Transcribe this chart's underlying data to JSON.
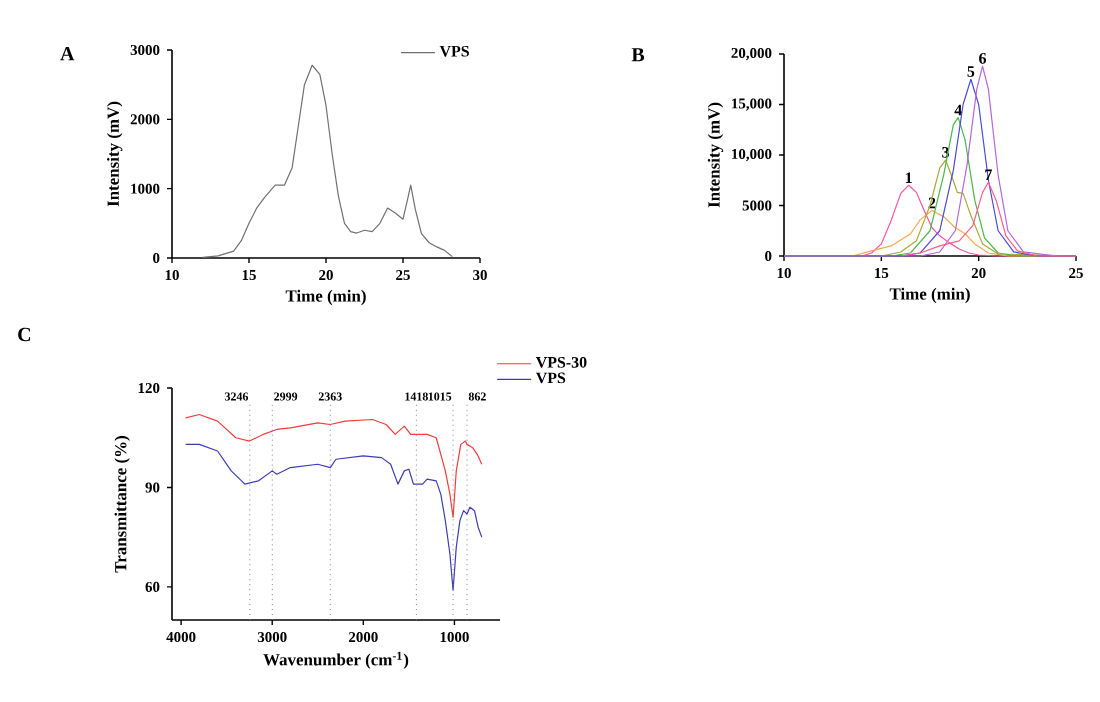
{
  "chart_data": [
    {
      "type": "line",
      "title": "A",
      "xlabel": "Time (min)",
      "ylabel": "Intensity (mV)",
      "xlim": [
        10,
        30
      ],
      "xticks": [
        10,
        15,
        20,
        25,
        30
      ],
      "ylim": [
        0,
        3000
      ],
      "yticks": [
        0,
        1000,
        2000,
        3000
      ],
      "legend": "top right",
      "marker": "none",
      "line_style": "solid",
      "series": [
        {
          "name": "VPS",
          "color": "#707070",
          "x": [
            12,
            13,
            14,
            14.5,
            15,
            15.5,
            16,
            16.7,
            17.3,
            17.8,
            18.2,
            18.6,
            19.1,
            19.6,
            20,
            20.4,
            20.8,
            21.2,
            21.6,
            22,
            22.5,
            23,
            23.5,
            24,
            24.5,
            25,
            25.3,
            25.5,
            25.8,
            26.2,
            26.7,
            27.2,
            27.7,
            28.2
          ],
          "values": [
            10,
            30,
            100,
            250,
            500,
            720,
            870,
            1050,
            1050,
            1300,
            1900,
            2500,
            2780,
            2650,
            2200,
            1500,
            900,
            500,
            380,
            360,
            400,
            380,
            500,
            720,
            650,
            560,
            850,
            1050,
            700,
            350,
            220,
            160,
            110,
            20
          ]
        }
      ]
    },
    {
      "type": "line",
      "title": "B",
      "xlabel": "Time (min)",
      "ylabel": "Intensity (mV)",
      "xlim": [
        10,
        25
      ],
      "xticks": [
        10,
        15,
        20,
        25
      ],
      "ylim": [
        0,
        20000
      ],
      "yticks": [
        0,
        5000,
        {
          "value": 10000,
          "label": "10,000"
        },
        {
          "value": 15000,
          "label": "15,000"
        },
        {
          "value": 20000,
          "label": "20,000"
        }
      ],
      "marker": "none",
      "line_style": "solid",
      "series": [
        {
          "name": "1",
          "color": "#ff4f9f",
          "x": [
            10,
            14,
            14.5,
            15,
            15.5,
            16,
            16.4,
            16.8,
            17.2,
            17.6,
            18,
            18.5,
            19,
            19.5,
            20,
            21,
            25
          ],
          "values": [
            0,
            0,
            300,
            1200,
            3500,
            6200,
            7000,
            6300,
            4500,
            2800,
            2000,
            1300,
            700,
            300,
            100,
            0,
            0
          ]
        },
        {
          "name": "2",
          "color": "#ffa64d",
          "x": [
            10,
            13.5,
            14.5,
            15.5,
            16.5,
            17,
            17.6,
            18.2,
            18.8,
            19.3,
            19.8,
            20.5,
            21.5,
            25
          ],
          "values": [
            0,
            0,
            500,
            1000,
            2200,
            3600,
            4500,
            3900,
            2800,
            2200,
            1200,
            300,
            0,
            0
          ]
        },
        {
          "name": "3",
          "color": "#a8a838",
          "x": [
            10,
            15,
            16,
            16.8,
            17.5,
            18,
            18.3,
            18.6,
            18.9,
            19.2,
            19.6,
            20.2,
            21,
            25
          ],
          "values": [
            0,
            0,
            400,
            1500,
            5000,
            8700,
            9500,
            8000,
            6300,
            6200,
            4000,
            1200,
            200,
            0
          ]
        },
        {
          "name": "4",
          "color": "#49b749",
          "x": [
            10,
            15.5,
            16.5,
            17.5,
            18.2,
            18.7,
            18.95,
            19.3,
            19.8,
            20.3,
            21,
            22,
            25
          ],
          "values": [
            0,
            0,
            300,
            2500,
            8000,
            13000,
            13700,
            11500,
            5500,
            1800,
            300,
            0,
            0
          ]
        },
        {
          "name": "5",
          "color": "#4a4ad8",
          "x": [
            10,
            16,
            17,
            18,
            18.7,
            19.2,
            19.6,
            20,
            20.5,
            21,
            21.8,
            23,
            25
          ],
          "values": [
            0,
            0,
            300,
            2500,
            8500,
            15000,
            17500,
            15000,
            7500,
            2500,
            400,
            0,
            0
          ]
        },
        {
          "name": "6",
          "color": "#b468d8",
          "x": [
            10,
            17,
            18,
            18.8,
            19.4,
            19.9,
            20.2,
            20.5,
            21,
            21.5,
            22.3,
            24,
            25
          ],
          "values": [
            0,
            0,
            400,
            2500,
            9000,
            16500,
            18800,
            16500,
            8000,
            2500,
            400,
            0,
            0
          ]
        },
        {
          "name": "7",
          "color": "#ff5a8a",
          "x": [
            16,
            17,
            18,
            19,
            19.7,
            20.2,
            20.5,
            20.9,
            21.4,
            22,
            23,
            25
          ],
          "values": [
            0,
            300,
            1000,
            1500,
            3000,
            6300,
            7300,
            5500,
            2000,
            500,
            0,
            0
          ]
        }
      ]
    },
    {
      "type": "line",
      "title": "C",
      "xlabel": "Wavenumber (cm$^{-1}$)",
      "ylabel": "Transmittance (%)",
      "xlim": [
        4100,
        500
      ],
      "xticks": [
        4000,
        3000,
        2000,
        1000
      ],
      "ylim": [
        50,
        120
      ],
      "yticks": [
        60,
        90,
        120
      ],
      "legend": "top right",
      "marker": "none",
      "line_style": "solid",
      "ref_lines": [
        {
          "axis": "x",
          "value": 3246,
          "label": "3246",
          "color": "#808080",
          "line_style": "dotted"
        },
        {
          "axis": "x",
          "value": 2999,
          "label": "2999",
          "color": "#808080",
          "line_style": "dotted"
        },
        {
          "axis": "x",
          "value": 2363,
          "label": "2363",
          "color": "#808080",
          "line_style": "dotted"
        },
        {
          "axis": "x",
          "value": 1418,
          "label": "1418",
          "color": "#808080",
          "line_style": "dotted"
        },
        {
          "axis": "x",
          "value": 1015,
          "label": "1015",
          "color": "#808080",
          "line_style": "dotted"
        },
        {
          "axis": "x",
          "value": 862,
          "label": "862",
          "color": "#808080",
          "line_style": "dotted"
        }
      ],
      "series": [
        {
          "name": "VPS-30",
          "color": "#f03c3c",
          "x": [
            3950,
            3800,
            3600,
            3400,
            3250,
            3100,
            2950,
            2800,
            2500,
            2363,
            2200,
            1900,
            1750,
            1650,
            1550,
            1480,
            1400,
            1300,
            1200,
            1150,
            1100,
            1050,
            1015,
            980,
            930,
            880,
            862,
            800,
            750,
            700
          ],
          "values": [
            111,
            112,
            110,
            105,
            104,
            106,
            107.5,
            108,
            109.5,
            109,
            110,
            110.5,
            109,
            106,
            108.5,
            106,
            106,
            106,
            105,
            100,
            95,
            88,
            81,
            95,
            103,
            104,
            103,
            102,
            100,
            97
          ]
        },
        {
          "name": "VPS",
          "color": "#3c3cb4",
          "x": [
            3950,
            3800,
            3600,
            3450,
            3300,
            3150,
            3000,
            2950,
            2800,
            2500,
            2363,
            2300,
            2000,
            1800,
            1700,
            1620,
            1550,
            1500,
            1450,
            1350,
            1300,
            1200,
            1150,
            1100,
            1050,
            1015,
            980,
            940,
            900,
            862,
            830,
            780,
            740,
            700
          ],
          "values": [
            103,
            103,
            101,
            95,
            91,
            92,
            95,
            94,
            96,
            97,
            96,
            98.5,
            99.5,
            99,
            97,
            91,
            95,
            95.5,
            91,
            91,
            92.5,
            92,
            88,
            80,
            70,
            59,
            72,
            80,
            83,
            82,
            84,
            83,
            78,
            75
          ]
        }
      ]
    }
  ]
}
